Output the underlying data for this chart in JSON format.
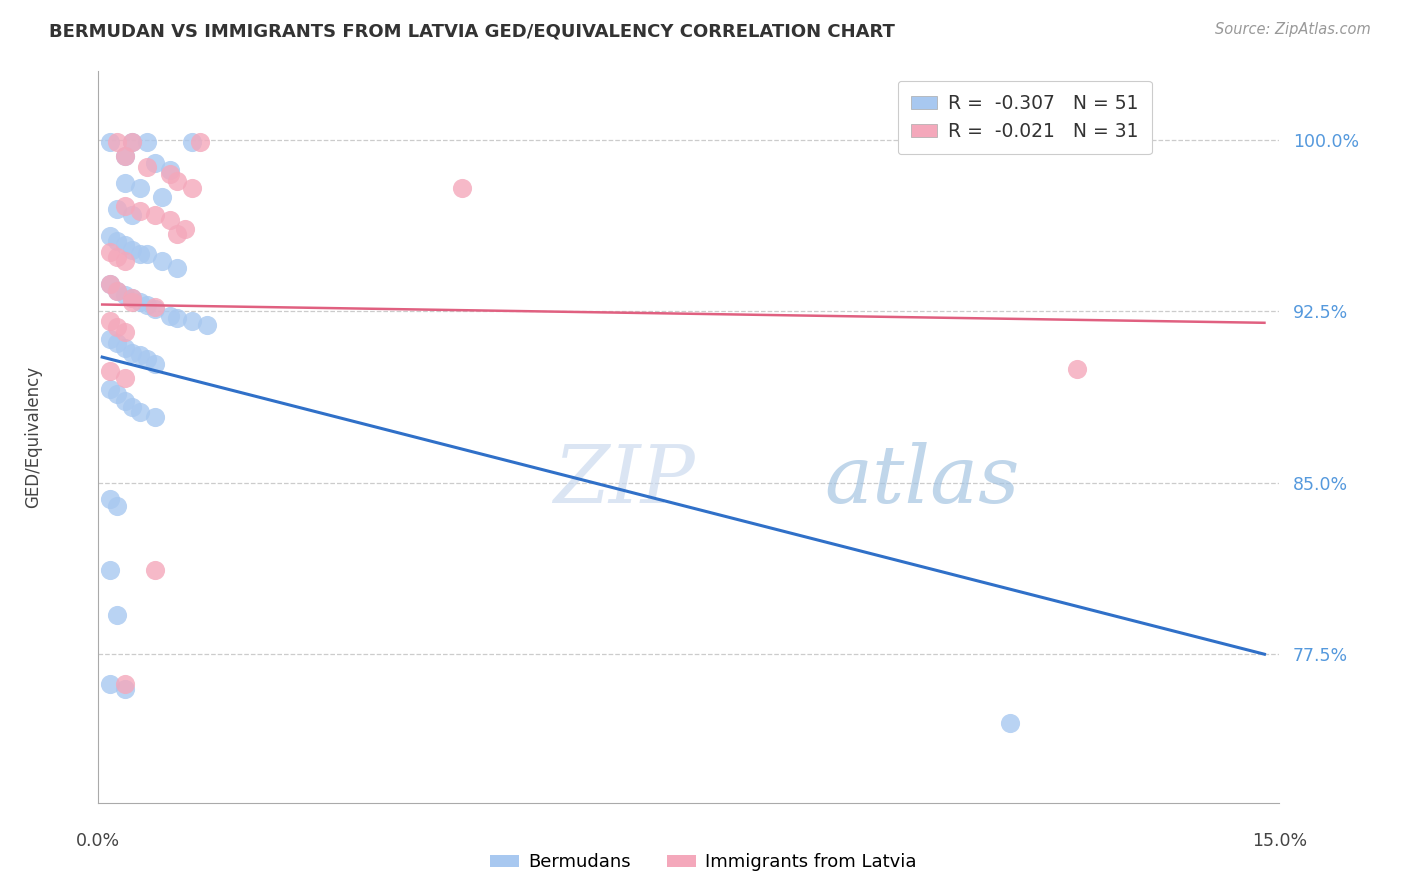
{
  "title": "BERMUDAN VS IMMIGRANTS FROM LATVIA GED/EQUIVALENCY CORRELATION CHART",
  "source": "Source: ZipAtlas.com",
  "ylabel": "GED/Equivalency",
  "ymin": 0.71,
  "ymax": 1.03,
  "xmin": -0.0005,
  "xmax": 0.157,
  "legend_blue_r": "-0.307",
  "legend_blue_n": "51",
  "legend_pink_r": "-0.021",
  "legend_pink_n": "31",
  "blue_color": "#A8C8F0",
  "pink_color": "#F4A8BB",
  "blue_line_color": "#3070C8",
  "pink_line_color": "#E06080",
  "ytick_positions": [
    0.775,
    0.85,
    0.925,
    1.0
  ],
  "ytick_labels": [
    "77.5%",
    "85.0%",
    "92.5%",
    "100.0%"
  ],
  "blue_trend_x": [
    0.0,
    0.155
  ],
  "blue_trend_y": [
    0.905,
    0.775
  ],
  "pink_trend_x": [
    0.0,
    0.155
  ],
  "pink_trend_y": [
    0.928,
    0.92
  ],
  "blue_dots": [
    [
      0.001,
      0.999
    ],
    [
      0.004,
      0.999
    ],
    [
      0.006,
      0.999
    ],
    [
      0.012,
      0.999
    ],
    [
      0.003,
      0.993
    ],
    [
      0.007,
      0.99
    ],
    [
      0.009,
      0.987
    ],
    [
      0.003,
      0.981
    ],
    [
      0.005,
      0.979
    ],
    [
      0.008,
      0.975
    ],
    [
      0.002,
      0.97
    ],
    [
      0.004,
      0.967
    ],
    [
      0.001,
      0.958
    ],
    [
      0.002,
      0.956
    ],
    [
      0.003,
      0.954
    ],
    [
      0.004,
      0.952
    ],
    [
      0.005,
      0.95
    ],
    [
      0.006,
      0.95
    ],
    [
      0.008,
      0.947
    ],
    [
      0.01,
      0.944
    ],
    [
      0.001,
      0.937
    ],
    [
      0.002,
      0.934
    ],
    [
      0.003,
      0.932
    ],
    [
      0.004,
      0.931
    ],
    [
      0.005,
      0.929
    ],
    [
      0.006,
      0.928
    ],
    [
      0.007,
      0.926
    ],
    [
      0.009,
      0.923
    ],
    [
      0.01,
      0.922
    ],
    [
      0.012,
      0.921
    ],
    [
      0.014,
      0.919
    ],
    [
      0.001,
      0.913
    ],
    [
      0.002,
      0.911
    ],
    [
      0.003,
      0.909
    ],
    [
      0.004,
      0.907
    ],
    [
      0.005,
      0.906
    ],
    [
      0.006,
      0.904
    ],
    [
      0.007,
      0.902
    ],
    [
      0.001,
      0.891
    ],
    [
      0.002,
      0.889
    ],
    [
      0.003,
      0.886
    ],
    [
      0.004,
      0.883
    ],
    [
      0.005,
      0.881
    ],
    [
      0.007,
      0.879
    ],
    [
      0.001,
      0.843
    ],
    [
      0.002,
      0.84
    ],
    [
      0.001,
      0.812
    ],
    [
      0.002,
      0.792
    ],
    [
      0.001,
      0.762
    ],
    [
      0.003,
      0.76
    ],
    [
      0.121,
      0.745
    ]
  ],
  "pink_dots": [
    [
      0.002,
      0.999
    ],
    [
      0.004,
      0.999
    ],
    [
      0.013,
      0.999
    ],
    [
      0.003,
      0.993
    ],
    [
      0.006,
      0.988
    ],
    [
      0.009,
      0.985
    ],
    [
      0.01,
      0.982
    ],
    [
      0.003,
      0.971
    ],
    [
      0.005,
      0.969
    ],
    [
      0.007,
      0.967
    ],
    [
      0.009,
      0.965
    ],
    [
      0.011,
      0.961
    ],
    [
      0.01,
      0.959
    ],
    [
      0.001,
      0.951
    ],
    [
      0.002,
      0.949
    ],
    [
      0.003,
      0.947
    ],
    [
      0.001,
      0.937
    ],
    [
      0.002,
      0.934
    ],
    [
      0.004,
      0.931
    ],
    [
      0.004,
      0.929
    ],
    [
      0.007,
      0.927
    ],
    [
      0.001,
      0.921
    ],
    [
      0.002,
      0.918
    ],
    [
      0.003,
      0.916
    ],
    [
      0.001,
      0.899
    ],
    [
      0.003,
      0.896
    ],
    [
      0.012,
      0.979
    ],
    [
      0.007,
      0.812
    ],
    [
      0.003,
      0.762
    ],
    [
      0.13,
      0.9
    ],
    [
      0.048,
      0.979
    ]
  ]
}
